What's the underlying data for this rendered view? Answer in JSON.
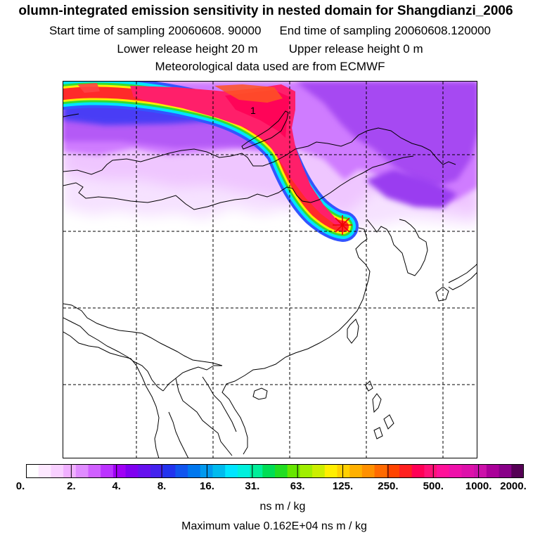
{
  "header": {
    "title": "olumn-integrated emission sensitivity in nested domain for Shangdianzi_2006",
    "start_time": "Start time of sampling 20060608. 90000",
    "end_time": "End time of sampling 20060608.120000",
    "lower_height": "Lower release height   20 m",
    "upper_height": "Upper release height    0 m",
    "meteo": "Meteorological data used are from ECMWF"
  },
  "map": {
    "contour_label": "1",
    "release_marker": "star-icon",
    "plume_core_color": "#ff1f6a",
    "plume_edge_colors": [
      "#ffee00",
      "#33dd33",
      "#00e5ff",
      "#3355ff"
    ],
    "background_field_colors": [
      "#9a3df0",
      "#c970ff",
      "#eec0ff",
      "#f8e6ff"
    ]
  },
  "colorbar": {
    "tick_labels": [
      "0.",
      "2.",
      "4.",
      "8.",
      "16.",
      "31.",
      "63.",
      "125.",
      "250.",
      "500.",
      "1000.",
      "2000."
    ],
    "colors": [
      "#ffffff",
      "#fde8ff",
      "#f8d0ff",
      "#f0b0ff",
      "#e08cff",
      "#d060ff",
      "#bb33ff",
      "#a000f5",
      "#8000f0",
      "#6611ee",
      "#4422ee",
      "#2233ee",
      "#1155ee",
      "#0077ee",
      "#0099ee",
      "#00bbee",
      "#00e5ff",
      "#00f0dd",
      "#00ee99",
      "#00dd55",
      "#22dd22",
      "#66e600",
      "#a0ee00",
      "#ccee00",
      "#ffee00",
      "#ffd000",
      "#ffb000",
      "#ff9000",
      "#ff6a00",
      "#ff4400",
      "#ff2020",
      "#ff0055",
      "#ff1177",
      "#ff1199",
      "#ee11aa",
      "#dd11aa",
      "#cc11aa",
      "#aa0099",
      "#880088",
      "#550055"
    ]
  },
  "units": "ns m / kg",
  "max_value": "Maximum value  0.162E+04 ns m / kg"
}
